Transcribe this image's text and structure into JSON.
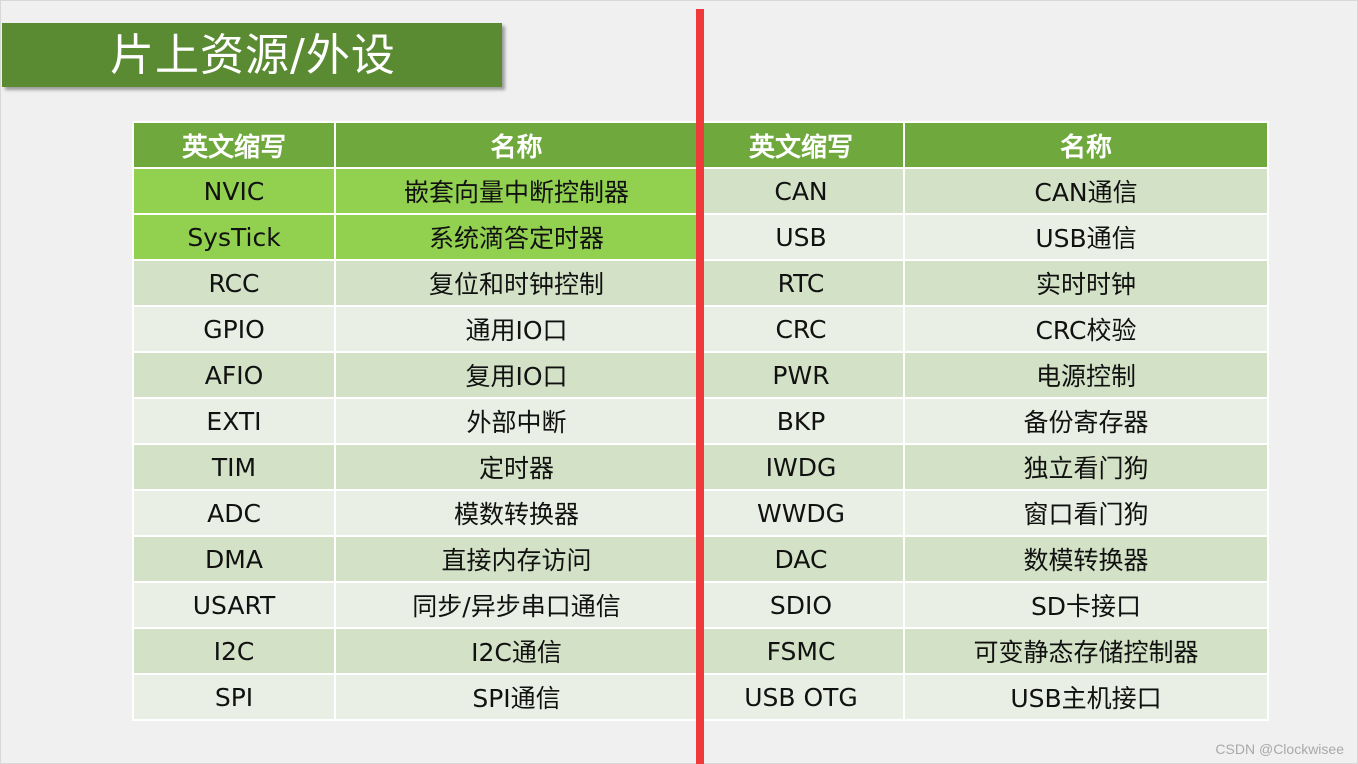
{
  "title": "片上资源/外设",
  "table": {
    "headers": [
      "英文缩写",
      "名称",
      "英文缩写",
      "名称"
    ],
    "rows": [
      {
        "left_abbr": "NVIC",
        "left_name": "嵌套向量中断控制器",
        "right_abbr": "CAN",
        "right_name": "CAN通信",
        "left_highlight": true
      },
      {
        "left_abbr": "SysTick",
        "left_name": "系统滴答定时器",
        "right_abbr": "USB",
        "right_name": "USB通信",
        "left_highlight": true
      },
      {
        "left_abbr": "RCC",
        "left_name": "复位和时钟控制",
        "right_abbr": "RTC",
        "right_name": "实时时钟"
      },
      {
        "left_abbr": "GPIO",
        "left_name": "通用IO口",
        "right_abbr": "CRC",
        "right_name": "CRC校验"
      },
      {
        "left_abbr": "AFIO",
        "left_name": "复用IO口",
        "right_abbr": "PWR",
        "right_name": "电源控制"
      },
      {
        "left_abbr": "EXTI",
        "left_name": "外部中断",
        "right_abbr": "BKP",
        "right_name": "备份寄存器"
      },
      {
        "left_abbr": "TIM",
        "left_name": "定时器",
        "right_abbr": "IWDG",
        "right_name": "独立看门狗"
      },
      {
        "left_abbr": "ADC",
        "left_name": "模数转换器",
        "right_abbr": "WWDG",
        "right_name": "窗口看门狗"
      },
      {
        "left_abbr": "DMA",
        "left_name": "直接内存访问",
        "right_abbr": "DAC",
        "right_name": "数模转换器"
      },
      {
        "left_abbr": "USART",
        "left_name": "同步/异步串口通信",
        "right_abbr": "SDIO",
        "right_name": "SD卡接口"
      },
      {
        "left_abbr": "I2C",
        "left_name": "I2C通信",
        "right_abbr": "FSMC",
        "right_name": "可变静态存储控制器"
      },
      {
        "left_abbr": "SPI",
        "left_name": "SPI通信",
        "right_abbr": "USB OTG",
        "right_name": "USB主机接口"
      }
    ]
  },
  "colors": {
    "title_bg": "#5a8b32",
    "header_bg": "#6fa83d",
    "highlight_bg": "#92d050",
    "row_dark": "#d3e2c7",
    "row_light": "#e9efe4",
    "divider": "#f0393a"
  },
  "watermark": "CSDN @Clockwisee"
}
